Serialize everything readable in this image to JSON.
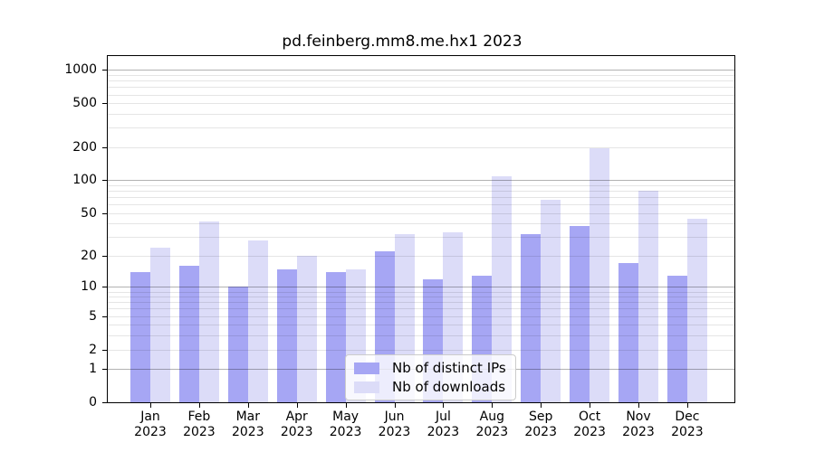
{
  "chart_data": {
    "type": "bar",
    "title": "pd.feinberg.mm8.me.hx1 2023",
    "y_scale": "log10(value+1)",
    "grid": true,
    "categories": [
      "Jan",
      "Feb",
      "Mar",
      "Apr",
      "May",
      "Jun",
      "Jul",
      "Aug",
      "Sep",
      "Oct",
      "Nov",
      "Dec"
    ],
    "x_year_label": "2023",
    "series": [
      {
        "name": "Nb of distinct IPs",
        "color": "#a6a6f4",
        "values": [
          14,
          16,
          10,
          15,
          14,
          22,
          12,
          13,
          32,
          38,
          17,
          13
        ]
      },
      {
        "name": "Nb of downloads",
        "color": "#dcdcf8",
        "values": [
          24,
          42,
          28,
          20,
          15,
          32,
          33,
          108,
          66,
          196,
          80,
          44
        ]
      }
    ],
    "y_axis": {
      "ticks": [
        0,
        1,
        2,
        5,
        10,
        20,
        50,
        100,
        200,
        500,
        1000
      ],
      "range": [
        0,
        1330
      ]
    },
    "grid_colors": {
      "major": "rgba(0,0,0,0.30)",
      "minor": "rgba(0,0,0,0.10)"
    },
    "legend": {
      "position": "bottom-center",
      "items": [
        "Nb of distinct IPs",
        "Nb of downloads"
      ]
    }
  }
}
